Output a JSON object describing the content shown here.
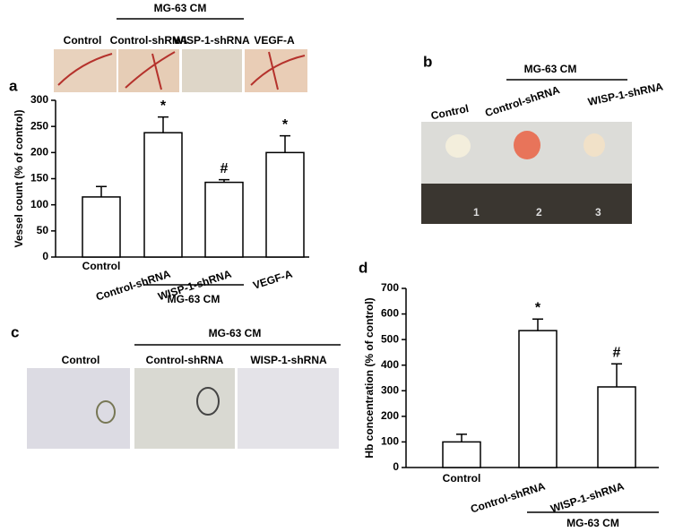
{
  "chart_data": [
    {
      "type": "bar",
      "panel": "a",
      "ylabel": "Vessel count (% of control)",
      "categories": [
        "Control",
        "Control-shRNA",
        "WISP-1-shRNA",
        "VEGF-A"
      ],
      "values": [
        115,
        238,
        143,
        200
      ],
      "errors": [
        20,
        30,
        5,
        32
      ],
      "value_annotations": [
        null,
        "*",
        "#",
        "*"
      ],
      "group_label": "MG-63  CM",
      "color": "#ffffff",
      "ylim": [
        0,
        300
      ],
      "yticks": [
        0,
        50,
        100,
        150,
        200,
        250,
        300
      ]
    },
    {
      "type": "bar",
      "panel": "d",
      "ylabel": "Hb concentration (% of control)",
      "categories": [
        "Control",
        "Control-shRNA",
        "WISP-1-shRNA"
      ],
      "values": [
        100,
        535,
        315
      ],
      "errors": [
        30,
        45,
        90
      ],
      "value_annotations": [
        null,
        "*",
        "#"
      ],
      "group_label": "MG-63 CM",
      "color": "#ffffff",
      "ylim": [
        0,
        700
      ],
      "yticks": [
        0,
        100,
        200,
        300,
        400,
        500,
        600,
        700
      ]
    }
  ],
  "panel_a_images": {
    "group": "MG-63  CM",
    "labels": [
      "Control",
      "Control-shRNA",
      "WISP-1-shRNA",
      "VEGF-A"
    ]
  },
  "panel_b": {
    "label": "b",
    "group": "MG-63 CM",
    "labels": [
      "Control",
      "Control-shRNA",
      "WISP-1-shRNA"
    ],
    "ruler": [
      "1",
      "2",
      "3"
    ]
  },
  "panel_c": {
    "label": "c",
    "group": "MG-63 CM",
    "labels": [
      "Control",
      "Control-shRNA",
      "WISP-1-shRNA"
    ]
  }
}
